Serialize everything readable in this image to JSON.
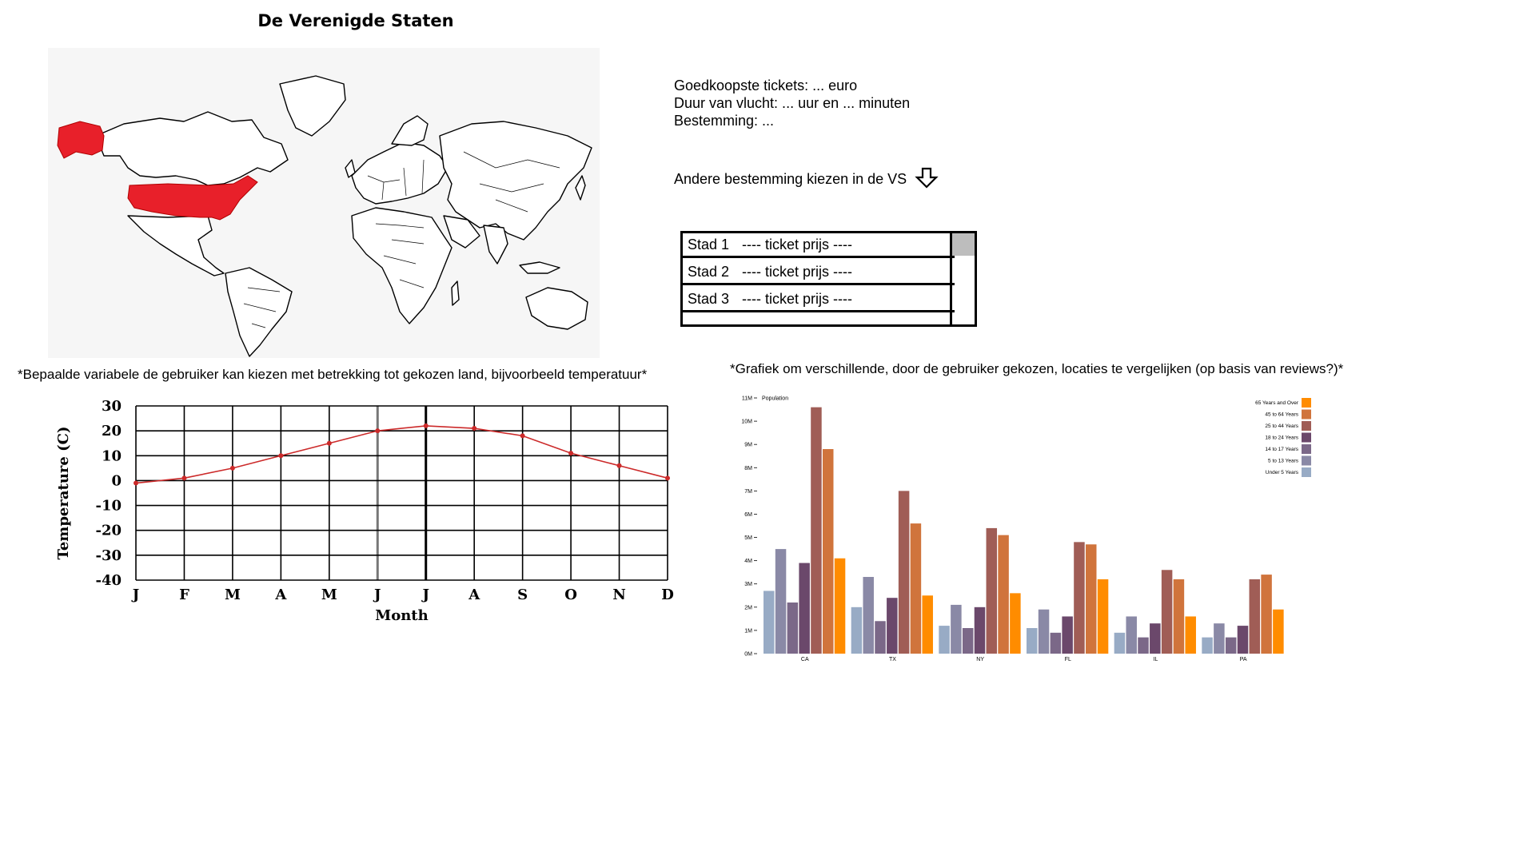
{
  "page": {
    "title": "De Verenigde Staten"
  },
  "map": {
    "highlight_color": "#e8202a",
    "land_stroke": "#000000"
  },
  "info": {
    "cheapest": "Goedkoopste tickets: ... euro",
    "duration": "Duur van vlucht: ... uur en ... minuten",
    "destination": "Bestemming: ..."
  },
  "choose": {
    "label": "Andere bestemming kiezen in de VS",
    "icon": "arrow-down-icon"
  },
  "cities": [
    {
      "name": "Stad 1",
      "price": "---- ticket prijs  ----"
    },
    {
      "name": "Stad 2",
      "price": "---- ticket prijs  ----"
    },
    {
      "name": "Stad 3",
      "price": "---- ticket prijs  ----"
    }
  ],
  "notes": {
    "left": "*Bepaalde variabele de gebruiker kan kiezen met betrekking tot gekozen land, bijvoorbeeld temperatuur*",
    "right": "*Grafiek om verschillende, door de gebruiker gekozen, locaties te vergelijken (op basis van reviews?)*"
  },
  "chart_data": [
    {
      "type": "line",
      "categories": [
        "J",
        "F",
        "M",
        "A",
        "M",
        "J",
        "J",
        "A",
        "S",
        "O",
        "N",
        "D"
      ],
      "series": [
        {
          "values": [
            -1,
            1,
            5,
            10,
            15,
            20,
            22,
            21,
            18,
            11,
            6,
            1
          ]
        }
      ],
      "xlabel": "Month",
      "ylabel": "Temperature (C)",
      "ylim": [
        -40,
        30
      ],
      "yticks": [
        30,
        20,
        10,
        0,
        -10,
        -20,
        -30,
        -40
      ],
      "grid": true,
      "line_color": "#cc2a2a"
    },
    {
      "type": "bar",
      "title": "Population",
      "categories": [
        "CA",
        "TX",
        "NY",
        "FL",
        "IL",
        "PA"
      ],
      "ylim": [
        0,
        11
      ],
      "yticks": [
        0,
        1,
        2,
        3,
        4,
        5,
        6,
        7,
        8,
        9,
        10,
        11
      ],
      "ytick_labels": [
        "0M",
        "1M",
        "2M",
        "3M",
        "4M",
        "5M",
        "6M",
        "7M",
        "8M",
        "9M",
        "10M",
        "11M"
      ],
      "legend_position": "top-right",
      "series": [
        {
          "name": "Under 5 Years",
          "color": "#98abc5",
          "values": [
            2.7,
            2.0,
            1.2,
            1.1,
            0.9,
            0.7
          ]
        },
        {
          "name": "5 to 13 Years",
          "color": "#8a89a6",
          "values": [
            4.5,
            3.3,
            2.1,
            1.9,
            1.6,
            1.3
          ]
        },
        {
          "name": "14 to 17 Years",
          "color": "#7b6888",
          "values": [
            2.2,
            1.4,
            1.1,
            0.9,
            0.7,
            0.7
          ]
        },
        {
          "name": "18 to 24 Years",
          "color": "#6b486b",
          "values": [
            3.9,
            2.4,
            2.0,
            1.6,
            1.3,
            1.2
          ]
        },
        {
          "name": "25 to 44 Years",
          "color": "#a05d56",
          "values": [
            10.6,
            7.0,
            5.4,
            4.8,
            3.6,
            3.2
          ]
        },
        {
          "name": "45 to 64 Years",
          "color": "#d0743c",
          "values": [
            8.8,
            5.6,
            5.1,
            4.7,
            3.2,
            3.4
          ]
        },
        {
          "name": "65 Years and Over",
          "color": "#ff8c00",
          "values": [
            4.1,
            2.5,
            2.6,
            3.2,
            1.6,
            1.9
          ]
        }
      ]
    }
  ]
}
